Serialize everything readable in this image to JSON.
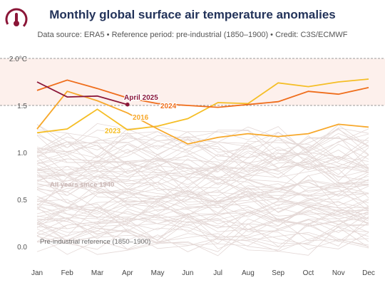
{
  "title": "Monthly global surface air temperature anomalies",
  "subtitle": "Data source: ERA5 • Reference period: pre-industrial (1850–1900) • Credit: C3S/ECMWF",
  "colors": {
    "band": "#fdf0ec",
    "year2025": "#8b1638",
    "year2024": "#ef6d1b",
    "year2023": "#f5be26",
    "year2016": "#f7a82b",
    "history": "#e4d8d6",
    "text_dark": "#23335a"
  },
  "chart_data": {
    "type": "line",
    "months": [
      "Jan",
      "Feb",
      "Mar",
      "Apr",
      "May",
      "Jun",
      "Jul",
      "Aug",
      "Sep",
      "Oct",
      "Nov",
      "Dec"
    ],
    "y_ticks": [
      "2.0°C",
      "1.5",
      "1.0",
      "0.5",
      "0.0"
    ],
    "y_tick_values": [
      2.0,
      1.5,
      1.0,
      0.5,
      0.0
    ],
    "ylim": [
      -0.05,
      2.0
    ],
    "highlight_band": [
      1.5,
      2.0
    ],
    "grid": "dashed at 1.5 and 2.0",
    "series": [
      {
        "name": "2023",
        "values": [
          1.21,
          1.25,
          1.46,
          1.24,
          1.28,
          1.36,
          1.53,
          1.52,
          1.74,
          1.7,
          1.75,
          1.78
        ],
        "label_month_index": 3
      },
      {
        "name": "2016",
        "values": [
          1.25,
          1.65,
          1.55,
          1.42,
          1.25,
          1.09,
          1.16,
          1.2,
          1.17,
          1.2,
          1.3,
          1.27
        ],
        "label_month_index": 3
      },
      {
        "name": "2024",
        "values": [
          1.66,
          1.77,
          1.68,
          1.58,
          1.52,
          1.5,
          1.48,
          1.51,
          1.54,
          1.65,
          1.62,
          1.69
        ],
        "label_month_index": 4
      },
      {
        "name": "April 2025",
        "values": [
          1.75,
          1.59,
          1.6,
          1.51
        ],
        "label_month_index": 3
      }
    ],
    "annotations": [
      {
        "text": "All years since 1940"
      },
      {
        "text": "Pre-industrial reference (1850–1900)"
      }
    ]
  }
}
